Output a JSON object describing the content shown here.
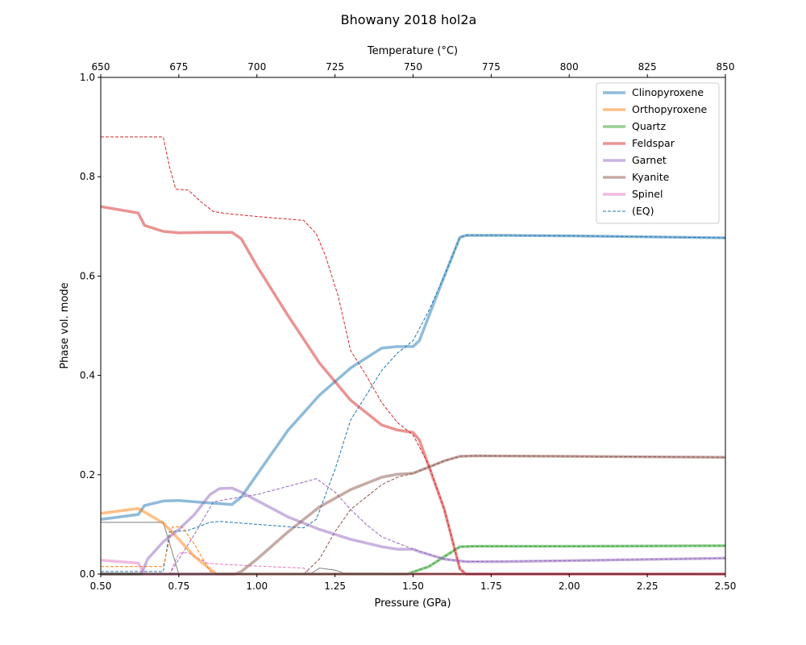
{
  "chart_data": {
    "type": "line",
    "title": "Bhowany 2018 hol2a",
    "xlabel": "Pressure (GPa)",
    "ylabel": "Phase vol. mode",
    "x2label": "Temperature (°C)",
    "xlim": [
      0.5,
      2.5
    ],
    "ylim": [
      0.0,
      1.0
    ],
    "x2lim": [
      650,
      850
    ],
    "xticks": [
      "0.50",
      "0.75",
      "1.00",
      "1.25",
      "1.50",
      "1.75",
      "2.00",
      "2.25",
      "2.50"
    ],
    "x2ticks": [
      "650",
      "675",
      "700",
      "725",
      "750",
      "775",
      "800",
      "825",
      "850"
    ],
    "yticks": [
      "0.0",
      "0.2",
      "0.4",
      "0.6",
      "0.8",
      "1.0"
    ],
    "grid": false,
    "legend_position": "top-right",
    "legend_eq_label": "(EQ)",
    "series": [
      {
        "name": "Clinopyroxene",
        "color": "#1f77b4",
        "solid": [
          [
            0.5,
            0.11
          ],
          [
            0.62,
            0.12
          ],
          [
            0.64,
            0.138
          ],
          [
            0.7,
            0.147
          ],
          [
            0.75,
            0.148
          ],
          [
            0.85,
            0.143
          ],
          [
            0.92,
            0.14
          ],
          [
            0.95,
            0.155
          ],
          [
            1.0,
            0.2
          ],
          [
            1.1,
            0.29
          ],
          [
            1.2,
            0.36
          ],
          [
            1.3,
            0.415
          ],
          [
            1.4,
            0.455
          ],
          [
            1.45,
            0.458
          ],
          [
            1.5,
            0.458
          ],
          [
            1.52,
            0.47
          ],
          [
            1.6,
            0.6
          ],
          [
            1.65,
            0.678
          ],
          [
            1.67,
            0.682
          ],
          [
            1.8,
            0.682
          ],
          [
            2.0,
            0.681
          ],
          [
            2.5,
            0.677
          ]
        ],
        "eq": [
          [
            0.5,
            0.005
          ],
          [
            0.7,
            0.005
          ],
          [
            0.72,
            0.085
          ],
          [
            0.78,
            0.088
          ],
          [
            0.85,
            0.104
          ],
          [
            0.88,
            0.106
          ],
          [
            1.0,
            0.1
          ],
          [
            1.15,
            0.093
          ],
          [
            1.19,
            0.11
          ],
          [
            1.25,
            0.21
          ],
          [
            1.3,
            0.31
          ],
          [
            1.35,
            0.36
          ],
          [
            1.4,
            0.41
          ],
          [
            1.45,
            0.445
          ],
          [
            1.5,
            0.47
          ],
          [
            1.55,
            0.53
          ],
          [
            1.6,
            0.6
          ],
          [
            1.65,
            0.678
          ],
          [
            1.67,
            0.682
          ],
          [
            2.0,
            0.681
          ],
          [
            2.5,
            0.677
          ]
        ]
      },
      {
        "name": "Orthopyroxene",
        "color": "#ff7f0e",
        "solid": [
          [
            0.5,
            0.122
          ],
          [
            0.62,
            0.132
          ],
          [
            0.7,
            0.103
          ],
          [
            0.75,
            0.07
          ],
          [
            0.8,
            0.035
          ],
          [
            0.87,
            0.0
          ],
          [
            2.5,
            0.0
          ]
        ],
        "eq": [
          [
            0.5,
            0.015
          ],
          [
            0.7,
            0.015
          ],
          [
            0.73,
            0.095
          ],
          [
            0.76,
            0.095
          ],
          [
            0.8,
            0.06
          ],
          [
            0.85,
            0.005
          ],
          [
            0.88,
            0.0
          ],
          [
            2.5,
            0.0
          ]
        ]
      },
      {
        "name": "Quartz",
        "color": "#2ca02c",
        "solid": [
          [
            0.5,
            0.0
          ],
          [
            1.48,
            0.0
          ],
          [
            1.55,
            0.015
          ],
          [
            1.6,
            0.035
          ],
          [
            1.65,
            0.055
          ],
          [
            1.7,
            0.056
          ],
          [
            2.0,
            0.056
          ],
          [
            2.5,
            0.057
          ]
        ],
        "eq": [
          [
            0.5,
            0.0
          ],
          [
            1.48,
            0.0
          ],
          [
            1.55,
            0.015
          ],
          [
            1.6,
            0.035
          ],
          [
            1.65,
            0.055
          ],
          [
            1.7,
            0.056
          ],
          [
            2.0,
            0.056
          ],
          [
            2.5,
            0.057
          ]
        ]
      },
      {
        "name": "Feldspar",
        "color": "#d62728",
        "solid": [
          [
            0.5,
            0.74
          ],
          [
            0.62,
            0.727
          ],
          [
            0.64,
            0.702
          ],
          [
            0.7,
            0.69
          ],
          [
            0.75,
            0.687
          ],
          [
            0.85,
            0.688
          ],
          [
            0.92,
            0.688
          ],
          [
            0.95,
            0.675
          ],
          [
            1.0,
            0.62
          ],
          [
            1.1,
            0.52
          ],
          [
            1.2,
            0.425
          ],
          [
            1.3,
            0.35
          ],
          [
            1.4,
            0.3
          ],
          [
            1.45,
            0.29
          ],
          [
            1.5,
            0.285
          ],
          [
            1.52,
            0.27
          ],
          [
            1.6,
            0.13
          ],
          [
            1.65,
            0.01
          ],
          [
            1.67,
            0.0
          ],
          [
            2.5,
            0.0
          ]
        ],
        "eq": [
          [
            0.5,
            0.88
          ],
          [
            0.7,
            0.88
          ],
          [
            0.72,
            0.82
          ],
          [
            0.74,
            0.775
          ],
          [
            0.78,
            0.773
          ],
          [
            0.82,
            0.75
          ],
          [
            0.86,
            0.73
          ],
          [
            0.9,
            0.726
          ],
          [
            1.0,
            0.72
          ],
          [
            1.15,
            0.712
          ],
          [
            1.19,
            0.685
          ],
          [
            1.22,
            0.64
          ],
          [
            1.26,
            0.56
          ],
          [
            1.3,
            0.45
          ],
          [
            1.35,
            0.4
          ],
          [
            1.4,
            0.345
          ],
          [
            1.45,
            0.305
          ],
          [
            1.5,
            0.28
          ],
          [
            1.55,
            0.22
          ],
          [
            1.6,
            0.13
          ],
          [
            1.65,
            0.01
          ],
          [
            1.67,
            0.0
          ],
          [
            2.5,
            0.0
          ]
        ]
      },
      {
        "name": "Garnet",
        "color": "#9467bd",
        "solid": [
          [
            0.5,
            0.0
          ],
          [
            0.63,
            0.0
          ],
          [
            0.65,
            0.03
          ],
          [
            0.7,
            0.065
          ],
          [
            0.75,
            0.09
          ],
          [
            0.8,
            0.12
          ],
          [
            0.85,
            0.16
          ],
          [
            0.88,
            0.172
          ],
          [
            0.92,
            0.173
          ],
          [
            0.95,
            0.165
          ],
          [
            1.0,
            0.148
          ],
          [
            1.1,
            0.115
          ],
          [
            1.2,
            0.09
          ],
          [
            1.3,
            0.07
          ],
          [
            1.4,
            0.055
          ],
          [
            1.45,
            0.05
          ],
          [
            1.5,
            0.05
          ],
          [
            1.52,
            0.045
          ],
          [
            1.6,
            0.03
          ],
          [
            1.67,
            0.025
          ],
          [
            1.8,
            0.025
          ],
          [
            2.0,
            0.027
          ],
          [
            2.5,
            0.032
          ]
        ],
        "eq": [
          [
            0.5,
            0.0
          ],
          [
            0.72,
            0.0
          ],
          [
            0.8,
            0.08
          ],
          [
            0.86,
            0.145
          ],
          [
            0.9,
            0.15
          ],
          [
            1.0,
            0.16
          ],
          [
            1.15,
            0.185
          ],
          [
            1.19,
            0.192
          ],
          [
            1.25,
            0.165
          ],
          [
            1.3,
            0.13
          ],
          [
            1.35,
            0.1
          ],
          [
            1.4,
            0.075
          ],
          [
            1.5,
            0.05
          ],
          [
            1.55,
            0.04
          ],
          [
            1.6,
            0.03
          ],
          [
            1.67,
            0.025
          ],
          [
            2.0,
            0.027
          ],
          [
            2.5,
            0.032
          ]
        ]
      },
      {
        "name": "Kyanite",
        "color": "#8c564b",
        "solid": [
          [
            0.5,
            0.0
          ],
          [
            0.93,
            0.0
          ],
          [
            0.95,
            0.005
          ],
          [
            1.0,
            0.03
          ],
          [
            1.1,
            0.085
          ],
          [
            1.2,
            0.135
          ],
          [
            1.3,
            0.17
          ],
          [
            1.4,
            0.195
          ],
          [
            1.45,
            0.201
          ],
          [
            1.5,
            0.203
          ],
          [
            1.52,
            0.208
          ],
          [
            1.6,
            0.228
          ],
          [
            1.65,
            0.237
          ],
          [
            1.7,
            0.238
          ],
          [
            2.0,
            0.237
          ],
          [
            2.5,
            0.235
          ]
        ],
        "eq": [
          [
            0.5,
            0.0
          ],
          [
            1.15,
            0.0
          ],
          [
            1.2,
            0.03
          ],
          [
            1.25,
            0.085
          ],
          [
            1.3,
            0.13
          ],
          [
            1.35,
            0.155
          ],
          [
            1.4,
            0.18
          ],
          [
            1.45,
            0.195
          ],
          [
            1.5,
            0.203
          ],
          [
            1.55,
            0.215
          ],
          [
            1.6,
            0.228
          ],
          [
            1.65,
            0.237
          ],
          [
            1.7,
            0.238
          ],
          [
            2.0,
            0.237
          ],
          [
            2.5,
            0.235
          ]
        ]
      },
      {
        "name": "Spinel",
        "color": "#e377c2",
        "solid": [
          [
            0.5,
            0.028
          ],
          [
            0.62,
            0.022
          ],
          [
            0.64,
            0.0
          ],
          [
            2.5,
            0.0
          ]
        ],
        "eq": [
          [
            0.5,
            0.0
          ],
          [
            0.72,
            0.0
          ],
          [
            0.75,
            0.042
          ],
          [
            0.78,
            0.043
          ],
          [
            0.84,
            0.022
          ],
          [
            0.88,
            0.02
          ],
          [
            1.0,
            0.016
          ],
          [
            1.15,
            0.012
          ],
          [
            1.17,
            0.0
          ],
          [
            2.5,
            0.0
          ]
        ]
      },
      {
        "name": "",
        "color": "#7f7f7f",
        "solid": [],
        "eq": [
          [
            0.5,
            0.104
          ],
          [
            0.7,
            0.104
          ],
          [
            0.75,
            0.0
          ],
          [
            1.17,
            0.0
          ],
          [
            1.2,
            0.012
          ],
          [
            1.25,
            0.008
          ],
          [
            1.28,
            0.002
          ],
          [
            2.5,
            0.0
          ]
        ]
      }
    ]
  }
}
